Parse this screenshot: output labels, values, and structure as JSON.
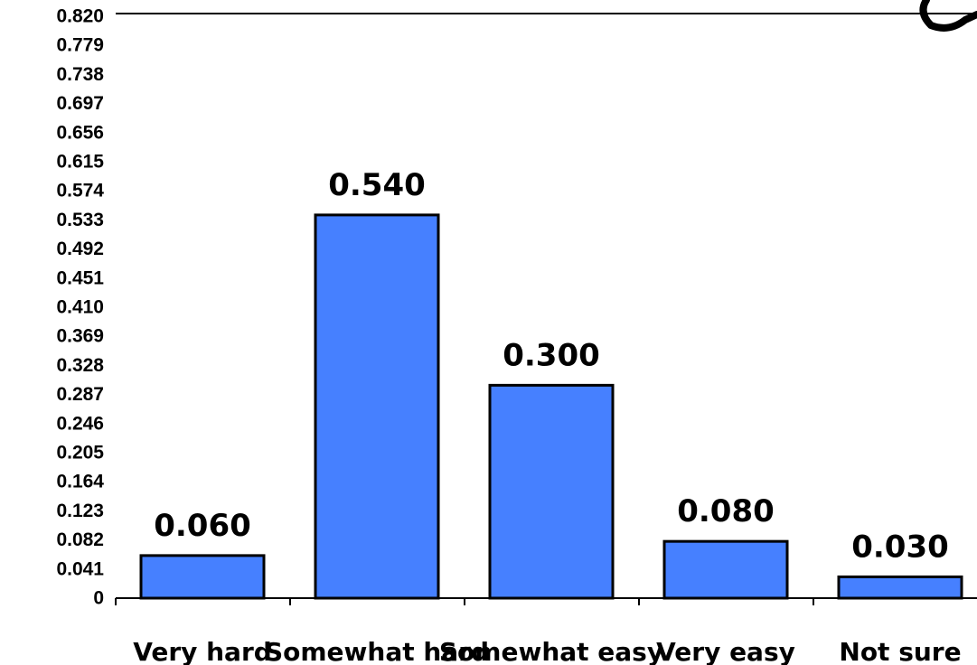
{
  "chart_data": {
    "type": "bar",
    "categories": [
      "Very hard",
      "Somewhat hard",
      "Somewhat easy",
      "Very easy",
      "Not sure"
    ],
    "values": [
      0.06,
      0.54,
      0.3,
      0.08,
      0.03
    ],
    "data_labels": [
      "0.060",
      "0.540",
      "0.300",
      "0.080",
      "0.030"
    ],
    "yticks": [
      "0",
      "0.041",
      "0.082",
      "0.123",
      "0.164",
      "0.205",
      "0.246",
      "0.287",
      "0.328",
      "0.369",
      "0.410",
      "0.451",
      "0.492",
      "0.533",
      "0.574",
      "0.615",
      "0.656",
      "0.697",
      "0.738",
      "0.779",
      "0.820"
    ],
    "ylim": [
      0,
      0.82
    ],
    "grid": false,
    "legend": "none",
    "bar_color": "#4680FF",
    "bar_edge_color": "#000000"
  }
}
